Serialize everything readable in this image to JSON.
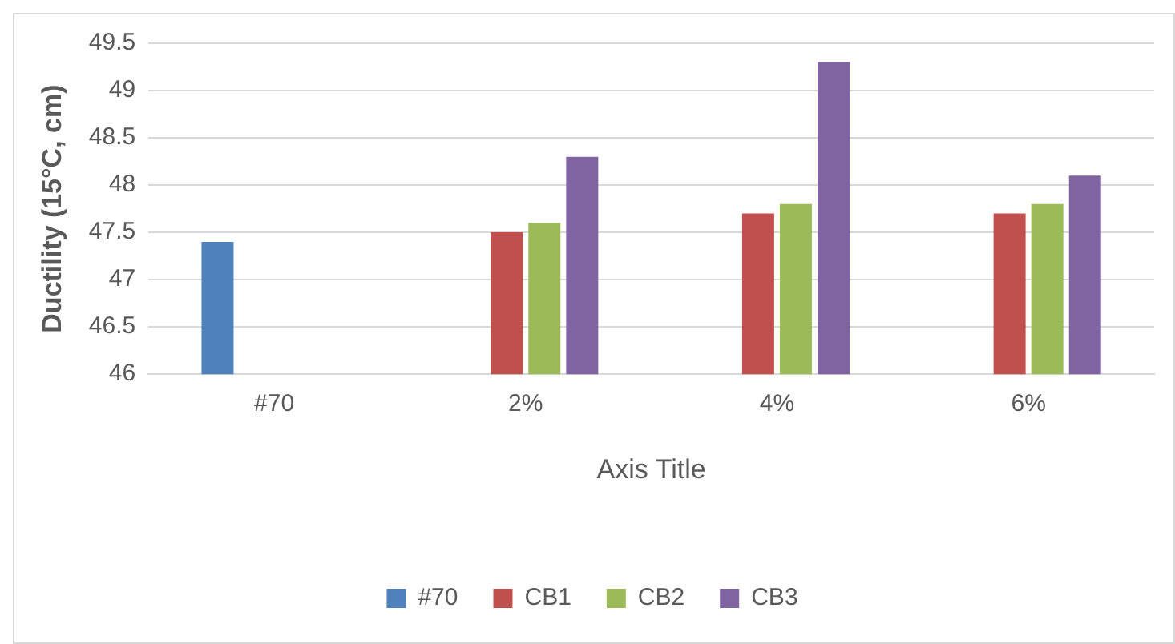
{
  "chart_data": {
    "type": "bar",
    "xlabel": "Axis Title",
    "ylabel": "Ductility (15°C, cm)",
    "categories": [
      "#70",
      "2%",
      "4%",
      "6%"
    ],
    "series": [
      {
        "name": "#70",
        "color": "#4f81bd",
        "values": [
          47.4,
          null,
          null,
          null
        ]
      },
      {
        "name": "CB1",
        "color": "#c0504d",
        "values": [
          null,
          47.5,
          47.7,
          47.7
        ]
      },
      {
        "name": "CB2",
        "color": "#9bbb59",
        "values": [
          null,
          47.6,
          47.8,
          47.8
        ]
      },
      {
        "name": "CB3",
        "color": "#8064a2",
        "values": [
          null,
          48.3,
          49.3,
          48.1
        ]
      }
    ],
    "ylim": [
      46,
      49.5
    ],
    "yticks": [
      46,
      46.5,
      47,
      47.5,
      48,
      48.5,
      49,
      49.5
    ],
    "grid": "y",
    "legend": "bottom"
  }
}
